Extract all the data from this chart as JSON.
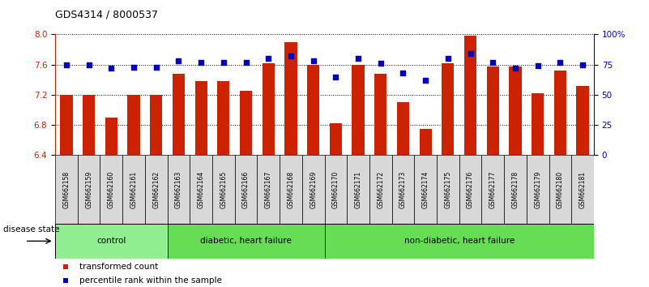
{
  "title": "GDS4314 / 8000537",
  "samples": [
    "GSM662158",
    "GSM662159",
    "GSM662160",
    "GSM662161",
    "GSM662162",
    "GSM662163",
    "GSM662164",
    "GSM662165",
    "GSM662166",
    "GSM662167",
    "GSM662168",
    "GSM662169",
    "GSM662170",
    "GSM662171",
    "GSM662172",
    "GSM662173",
    "GSM662174",
    "GSM662175",
    "GSM662176",
    "GSM662177",
    "GSM662178",
    "GSM662179",
    "GSM662180",
    "GSM662181"
  ],
  "transformed_count": [
    7.2,
    7.2,
    6.9,
    7.2,
    7.2,
    7.48,
    7.38,
    7.38,
    7.25,
    7.62,
    7.9,
    7.6,
    6.82,
    7.6,
    7.48,
    7.1,
    6.75,
    7.62,
    7.98,
    7.58,
    7.58,
    7.22,
    7.52,
    7.32
  ],
  "percentile_rank": [
    75,
    75,
    72,
    73,
    73,
    78,
    77,
    77,
    77,
    80,
    82,
    78,
    65,
    80,
    76,
    68,
    62,
    80,
    84,
    77,
    72,
    74,
    77,
    75
  ],
  "groups": [
    {
      "label": "control",
      "start": 0,
      "end": 4,
      "color": "#90EE90"
    },
    {
      "label": "diabetic, heart failure",
      "start": 5,
      "end": 11,
      "color": "#66DD55"
    },
    {
      "label": "non-diabetic, heart failure",
      "start": 12,
      "end": 23,
      "color": "#66DD55"
    }
  ],
  "ylim_left": [
    6.4,
    8.0
  ],
  "ylim_right": [
    0,
    100
  ],
  "yticks_left": [
    6.4,
    6.8,
    7.2,
    7.6,
    8.0
  ],
  "yticks_right": [
    0,
    25,
    50,
    75,
    100
  ],
  "bar_color": "#CC2200",
  "dot_color": "#0000BB",
  "bar_width": 0.55,
  "legend_items": [
    "transformed count",
    "percentile rank within the sample"
  ],
  "legend_colors": [
    "#CC2200",
    "#0000BB"
  ],
  "disease_state_label": "disease state"
}
